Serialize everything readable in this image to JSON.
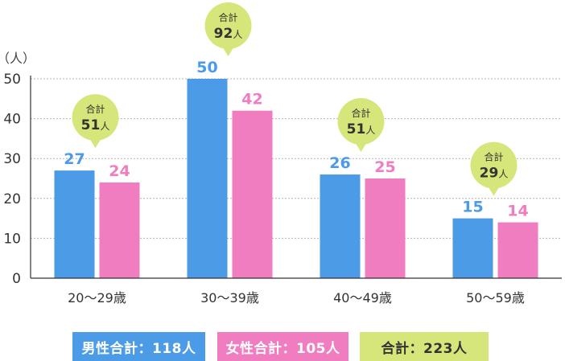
{
  "chart_data": {
    "type": "bar",
    "y_unit": "（人）",
    "ylim": [
      0,
      50
    ],
    "yticks": [
      "0",
      "10",
      "20",
      "30",
      "40",
      "50"
    ],
    "grid": true,
    "categories": [
      "20〜29歳",
      "30〜39歳",
      "40〜49歳",
      "50〜59歳"
    ],
    "series": [
      {
        "name": "男性合計：118人",
        "color": "#4B9BE6",
        "values": [
          27,
          50,
          26,
          15
        ]
      },
      {
        "name": "女性合計：105人",
        "color": "#F07DC0",
        "values": [
          24,
          42,
          25,
          14
        ]
      }
    ],
    "bubbles": [
      {
        "label": "合計",
        "value": "51",
        "unit": "人"
      },
      {
        "label": "合計",
        "value": "92",
        "unit": "人"
      },
      {
        "label": "合計",
        "value": "51",
        "unit": "人"
      },
      {
        "label": "合計",
        "value": "29",
        "unit": "人"
      }
    ],
    "bubble_color": "#D7E67A",
    "total_legend": {
      "label": "合計：223人",
      "color": "#D7E67A"
    }
  }
}
